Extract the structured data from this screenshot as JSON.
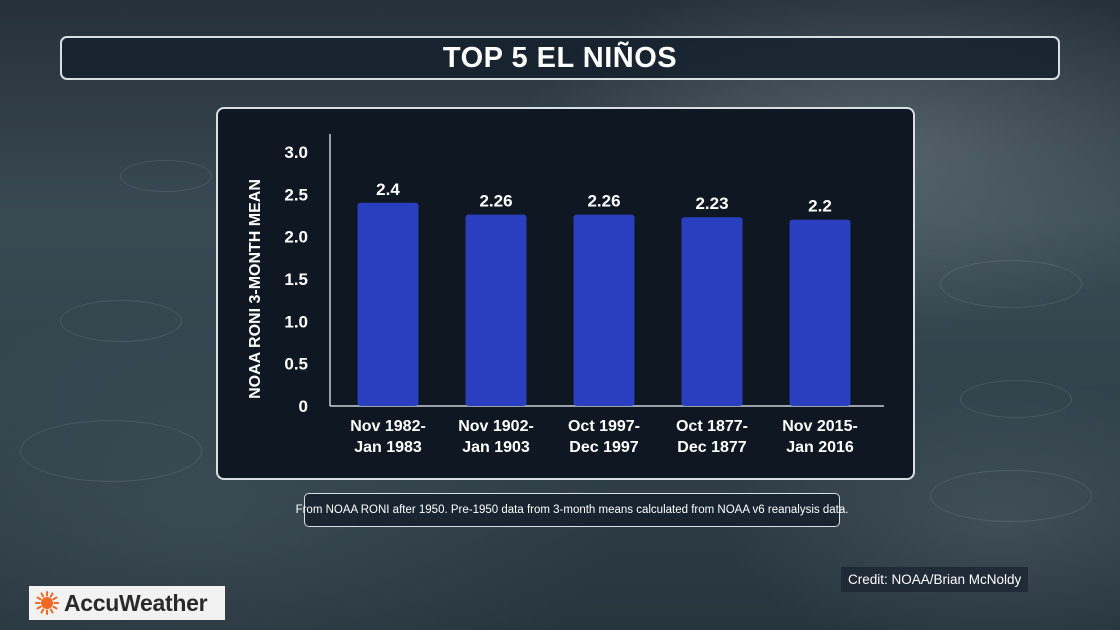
{
  "header": {
    "title": "TOP 5 EL NIÑOS"
  },
  "chart_data": {
    "type": "bar",
    "title": "",
    "xlabel": "",
    "ylabel": "NOAA RONI 3-MONTH MEAN",
    "ylim": [
      0,
      3.0
    ],
    "yticks": [
      "3.0",
      "2.5",
      "2.0",
      "1.5",
      "1.0",
      "0.5",
      "0"
    ],
    "ytick_values": [
      3.0,
      2.5,
      2.0,
      1.5,
      1.0,
      0.5,
      0
    ],
    "categories": [
      [
        "Nov 1982-",
        "Jan 1983"
      ],
      [
        "Nov 1902-",
        "Jan 1903"
      ],
      [
        "Oct 1997-",
        "Dec 1997"
      ],
      [
        "Oct 1877-",
        "Dec 1877"
      ],
      [
        "Nov 2015-",
        "Jan 2016"
      ]
    ],
    "values": [
      2.4,
      2.26,
      2.26,
      2.23,
      2.2
    ],
    "value_labels": [
      "2.4",
      "2.26",
      "2.26",
      "2.23",
      "2.2"
    ],
    "grid": false,
    "legend": "none",
    "bar_color": "#2a3fbf",
    "text_color": "#ffffff"
  },
  "footnote": "From NOAA RONI after 1950. Pre-1950 data from 3-month means calculated from NOAA v6 reanalysis data.",
  "credit": "Credit: NOAA/Brian McNoldy",
  "brand": {
    "name": "AccuWeather",
    "icon": "sun-icon",
    "accent": "#f26722"
  }
}
